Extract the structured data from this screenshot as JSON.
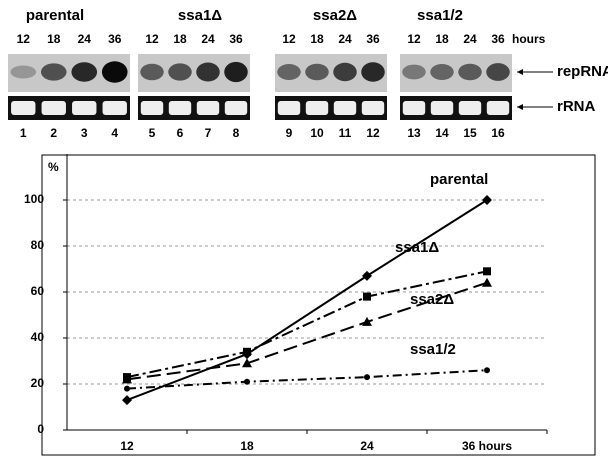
{
  "gel": {
    "groups": [
      {
        "name": "parental",
        "hours": [
          "12",
          "18",
          "24",
          "36"
        ],
        "lanes": [
          "1",
          "2",
          "3",
          "4"
        ]
      },
      {
        "name": "ssa1Δ",
        "hours": [
          "12",
          "18",
          "24",
          "36"
        ],
        "lanes": [
          "5",
          "6",
          "7",
          "8"
        ]
      },
      {
        "name": "ssa2Δ",
        "hours": [
          "12",
          "18",
          "24",
          "36"
        ],
        "lanes": [
          "9",
          "10",
          "11",
          "12"
        ]
      },
      {
        "name": "ssa1/2",
        "hours": [
          "12",
          "18",
          "24",
          "36"
        ],
        "lanes": [
          "13",
          "14",
          "15",
          "16"
        ]
      }
    ],
    "hours_unit": "hours",
    "bands": [
      "repRNA",
      "rRNA"
    ]
  },
  "chart_data": {
    "type": "line",
    "ylabel": "%",
    "categories": [
      "12",
      "18",
      "24",
      "36 hours"
    ],
    "series": [
      {
        "name": "parental",
        "color": "#000000",
        "marker": "diamond",
        "dash": "solid",
        "values": [
          13,
          33,
          67,
          100
        ]
      },
      {
        "name": "ssa1Δ",
        "color": "#000000",
        "marker": "square",
        "dash": "dashdot",
        "values": [
          23,
          34,
          58,
          69
        ]
      },
      {
        "name": "ssa2Δ",
        "color": "#000000",
        "marker": "triangle",
        "dash": "dash",
        "values": [
          22,
          29,
          47,
          64
        ]
      },
      {
        "name": "ssa1/2",
        "color": "#000000",
        "marker": "circle",
        "dash": "dashdotdot",
        "values": [
          18,
          21,
          23,
          26
        ]
      }
    ],
    "ylim": [
      0,
      120
    ],
    "yticks": [
      0,
      20,
      40,
      60,
      80,
      100
    ],
    "grid": true
  }
}
